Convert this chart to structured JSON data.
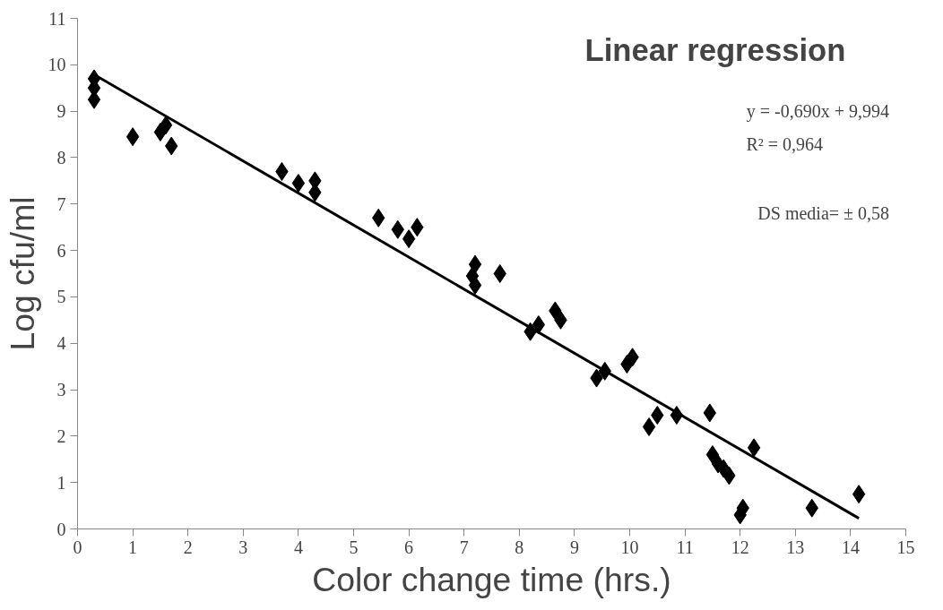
{
  "chart_data": {
    "type": "scatter",
    "title": "Linear regression",
    "xlabel": "Color change time (hrs.)",
    "ylabel": "Log cfu/ml",
    "xlim": [
      0,
      15
    ],
    "xticks": [
      0,
      1,
      2,
      3,
      4,
      5,
      6,
      7,
      8,
      9,
      10,
      11,
      12,
      13,
      14,
      15
    ],
    "ylim": [
      0,
      11
    ],
    "yticks": [
      0,
      1,
      2,
      3,
      4,
      5,
      6,
      7,
      8,
      9,
      10,
      11
    ],
    "grid": false,
    "marker": "diamond",
    "annotations": [
      "y = -0,690x + 9,994",
      "R² = 0,964",
      "DS media= ± 0,58"
    ],
    "series": [
      {
        "color": "#000000",
        "x": [
          0.3,
          0.3,
          0.3,
          1.0,
          1.5,
          1.6,
          1.7,
          3.7,
          4.0,
          4.3,
          4.3,
          5.45,
          5.8,
          6.0,
          6.15,
          7.15,
          7.2,
          7.2,
          7.65,
          8.2,
          8.35,
          8.65,
          8.75,
          9.4,
          9.55,
          9.95,
          10.05,
          10.35,
          10.5,
          10.85,
          11.45,
          11.5,
          11.6,
          11.7,
          11.8,
          12.0,
          12.05,
          12.25,
          13.3,
          14.15
        ],
        "values": [
          9.7,
          9.5,
          9.25,
          8.45,
          8.55,
          8.7,
          8.25,
          7.7,
          7.45,
          7.5,
          7.25,
          6.7,
          6.45,
          6.25,
          6.5,
          5.45,
          5.7,
          5.25,
          5.5,
          4.25,
          4.4,
          4.7,
          4.5,
          3.25,
          3.4,
          3.55,
          3.7,
          2.2,
          2.45,
          2.45,
          2.5,
          1.6,
          1.4,
          1.3,
          1.15,
          0.3,
          0.45,
          1.75,
          0.45,
          0.75
        ]
      },
      {
        "type": "line",
        "marker": "none",
        "color": "#000000",
        "x": [
          0.3,
          14.15
        ],
        "values": [
          9.79,
          0.23
        ]
      }
    ]
  }
}
